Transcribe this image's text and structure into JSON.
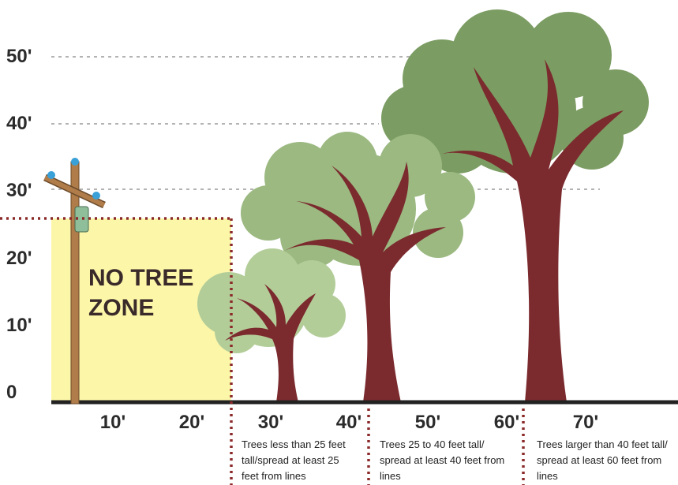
{
  "y_axis": {
    "labels": [
      "50'",
      "40'",
      "30'",
      "20'",
      "10'",
      "0"
    ]
  },
  "x_axis": {
    "labels": [
      "10'",
      "20'",
      "30'",
      "40'",
      "50'",
      "60'",
      "70'"
    ]
  },
  "zone_label": [
    "NO TREE",
    "ZONE"
  ],
  "captions": [
    [
      "Trees less than 25 feet",
      "tall/spread at least 25",
      "feet from lines"
    ],
    [
      "Trees 25 to 40 feet tall/",
      "spread at least 40 feet from",
      "lines"
    ],
    [
      "Trees larger than 40 feet tall/",
      "spread at least 60 feet from",
      "lines"
    ]
  ]
}
